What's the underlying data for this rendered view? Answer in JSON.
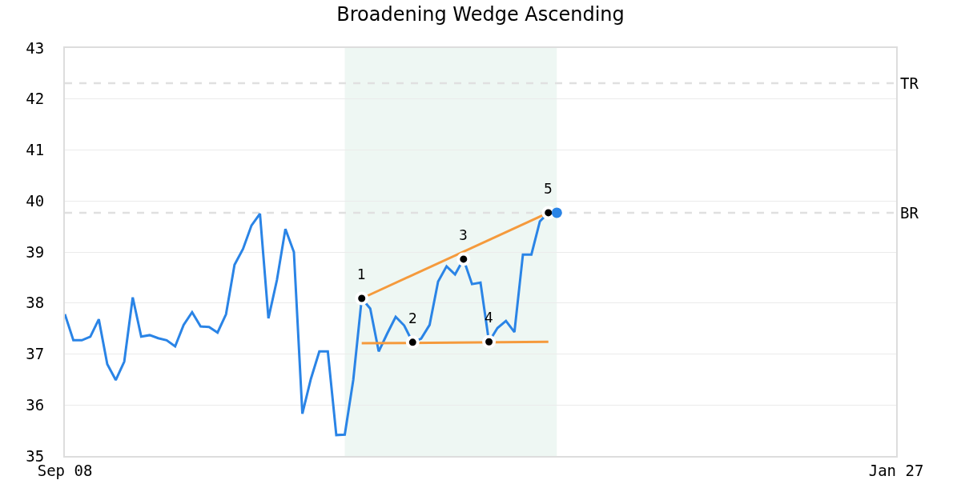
{
  "chart_data": {
    "type": "line",
    "title": "Broadening Wedge Ascending",
    "categories": [
      "Sep 08",
      null,
      null,
      null,
      null,
      null,
      null,
      null,
      null,
      null,
      null,
      null,
      null,
      null,
      null,
      null,
      null,
      null,
      null,
      null,
      null,
      null,
      null,
      null,
      null,
      null,
      null,
      null,
      null,
      null,
      null,
      null,
      null,
      null,
      null,
      null,
      null,
      null,
      null,
      null,
      null,
      null,
      null,
      null,
      null,
      null,
      null,
      null,
      null,
      null,
      null,
      null,
      null,
      null,
      null,
      null,
      null,
      null,
      null,
      null,
      null,
      null,
      null,
      null,
      null,
      null,
      null,
      null,
      null,
      null,
      null,
      null,
      null,
      null,
      null,
      null,
      null,
      null,
      null,
      null,
      null,
      null,
      null,
      null,
      null,
      null,
      null,
      null,
      null,
      null,
      null,
      null,
      null,
      null,
      null,
      null,
      null,
      null,
      "Jan 27"
    ],
    "ylim": [
      35,
      43
    ],
    "yticks": [
      35,
      36,
      37,
      38,
      39,
      40,
      41,
      42,
      43
    ],
    "grid": "y",
    "annotations": [
      {
        "text": "1",
        "y": 38.09
      },
      {
        "text": "2",
        "y": 37.23
      },
      {
        "text": "3",
        "y": 38.86
      },
      {
        "text": "4",
        "y": 37.24
      },
      {
        "text": "5",
        "y": 39.77
      }
    ],
    "ref_lines": [
      {
        "axis": "y",
        "value": 42.31,
        "label": "TR",
        "color": "#e0e0e0",
        "line_style": "dashed"
      },
      {
        "axis": "y",
        "value": 39.77,
        "label": "BR",
        "color": "#e0e0e0",
        "line_style": "dashed"
      }
    ],
    "series": [
      {
        "color": "#2a84e6",
        "marker": "none",
        "values": [
          37.78,
          37.27,
          37.27,
          37.34,
          37.68,
          36.8,
          36.49,
          36.85,
          38.11,
          37.34,
          37.37,
          37.31,
          37.27,
          37.15,
          37.57,
          37.82,
          37.54,
          37.53,
          37.42,
          37.78,
          38.75,
          39.06,
          39.52,
          39.75,
          37.7,
          38.45,
          39.45,
          39.0,
          35.83,
          36.51,
          37.05,
          37.05,
          35.41,
          35.42,
          36.49,
          38.09,
          37.89,
          37.05,
          37.4,
          37.73,
          37.56,
          37.23,
          37.3,
          37.57,
          38.42,
          38.72,
          38.56,
          38.86,
          38.37,
          38.4,
          37.24,
          37.51,
          37.65,
          37.43,
          38.95,
          38.95,
          39.6,
          39.77,
          null,
          null,
          null,
          null,
          null,
          null,
          null,
          null,
          null,
          null,
          null,
          null,
          null,
          null,
          null,
          null,
          null,
          null,
          null,
          null,
          null,
          null,
          null,
          null,
          null,
          null,
          null,
          null,
          null,
          null,
          null,
          null,
          null,
          null,
          null,
          null,
          null,
          null,
          null,
          null,
          null
        ]
      },
      {
        "type": "line",
        "color": "#f59a3c",
        "marker": "none",
        "values": [
          null,
          null,
          null,
          null,
          null,
          null,
          null,
          null,
          null,
          null,
          null,
          null,
          null,
          null,
          null,
          null,
          null,
          null,
          null,
          null,
          null,
          null,
          null,
          null,
          null,
          null,
          null,
          null,
          null,
          null,
          null,
          null,
          null,
          null,
          null,
          38.09,
          null,
          null,
          null,
          null,
          null,
          null,
          null,
          null,
          null,
          null,
          null,
          null,
          null,
          null,
          null,
          null,
          null,
          null,
          null,
          null,
          null,
          39.77,
          null,
          null,
          null,
          null,
          null,
          null,
          null,
          null,
          null,
          null,
          null,
          null,
          null,
          null,
          null,
          null,
          null,
          null,
          null,
          null,
          null,
          null,
          null,
          null,
          null,
          null,
          null,
          null,
          null,
          null,
          null,
          null,
          null,
          null,
          null,
          null,
          null,
          null,
          null,
          null,
          null
        ]
      },
      {
        "type": "line",
        "color": "#f59a3c",
        "marker": "none",
        "values": [
          null,
          null,
          null,
          null,
          null,
          null,
          null,
          null,
          null,
          null,
          null,
          null,
          null,
          null,
          null,
          null,
          null,
          null,
          null,
          null,
          null,
          null,
          null,
          null,
          null,
          null,
          null,
          null,
          null,
          null,
          null,
          null,
          null,
          null,
          null,
          37.21,
          null,
          null,
          null,
          null,
          null,
          null,
          null,
          null,
          null,
          null,
          null,
          null,
          null,
          null,
          null,
          null,
          null,
          null,
          null,
          null,
          null,
          37.24,
          null,
          null,
          null,
          null,
          null,
          null,
          null,
          null,
          null,
          null,
          null,
          null,
          null,
          null,
          null,
          null,
          null,
          null,
          null,
          null,
          null,
          null,
          null,
          null,
          null,
          null,
          null,
          null,
          null,
          null,
          null,
          null,
          null,
          null,
          null,
          null,
          null,
          null,
          null,
          null,
          null
        ]
      },
      {
        "type": "scatter",
        "color": "#000000",
        "marker": "circle",
        "values": [
          null,
          null,
          null,
          null,
          null,
          null,
          null,
          null,
          null,
          null,
          null,
          null,
          null,
          null,
          null,
          null,
          null,
          null,
          null,
          null,
          null,
          null,
          null,
          null,
          null,
          null,
          null,
          null,
          null,
          null,
          null,
          null,
          null,
          null,
          null,
          38.09,
          null,
          null,
          null,
          null,
          null,
          37.23,
          null,
          null,
          null,
          null,
          null,
          38.86,
          null,
          null,
          37.24,
          null,
          null,
          null,
          null,
          null,
          null,
          39.77,
          null,
          null,
          null,
          null,
          null,
          null,
          null,
          null,
          null,
          null,
          null,
          null,
          null,
          null,
          null,
          null,
          null,
          null,
          null,
          null,
          null,
          null,
          null,
          null,
          null,
          null,
          null,
          null,
          null,
          null,
          null,
          null,
          null,
          null,
          null,
          null,
          null,
          null,
          null,
          null,
          null
        ]
      },
      {
        "type": "scatter",
        "color": "#2a84e6",
        "marker": "circle",
        "values": [
          null,
          null,
          null,
          null,
          null,
          null,
          null,
          null,
          null,
          null,
          null,
          null,
          null,
          null,
          null,
          null,
          null,
          null,
          null,
          null,
          null,
          null,
          null,
          null,
          null,
          null,
          null,
          null,
          null,
          null,
          null,
          null,
          null,
          null,
          null,
          null,
          null,
          null,
          null,
          null,
          null,
          null,
          null,
          null,
          null,
          null,
          null,
          null,
          null,
          null,
          null,
          null,
          null,
          null,
          null,
          null,
          null,
          null,
          39.77,
          null,
          null,
          null,
          null,
          null,
          null,
          null,
          null,
          null,
          null,
          null,
          null,
          null,
          null,
          null,
          null,
          null,
          null,
          null,
          null,
          null,
          null,
          null,
          null,
          null,
          null,
          null,
          null,
          null,
          null,
          null,
          null,
          null,
          null,
          null,
          null,
          null,
          null,
          null,
          null
        ]
      }
    ]
  }
}
